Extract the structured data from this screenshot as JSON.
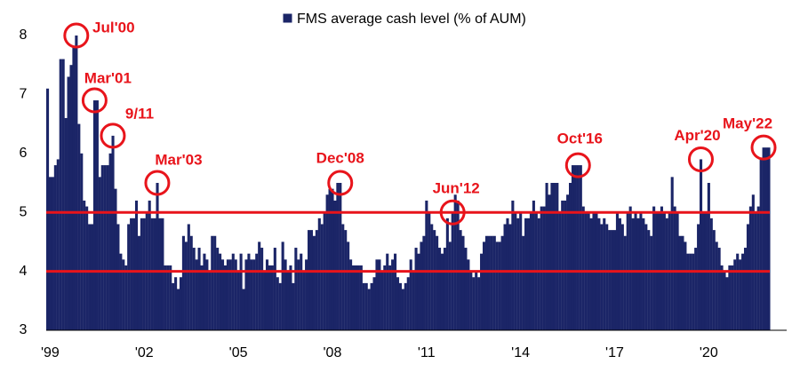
{
  "chart_data": {
    "type": "bar",
    "series": [
      {
        "name": "FMS average cash level (% of AUM)",
        "color": "#1b2567",
        "values": [
          7.1,
          5.6,
          5.6,
          5.8,
          5.9,
          7.6,
          7.6,
          6.6,
          7.3,
          7.5,
          7.8,
          8.0,
          6.5,
          6.0,
          5.2,
          5.1,
          4.8,
          4.8,
          6.9,
          6.9,
          5.6,
          5.8,
          5.8,
          5.8,
          6.0,
          6.3,
          5.4,
          4.8,
          4.3,
          4.2,
          4.1,
          4.8,
          4.9,
          4.9,
          5.2,
          4.6,
          4.9,
          4.9,
          5.0,
          5.2,
          4.9,
          4.9,
          5.5,
          4.9,
          4.9,
          4.1,
          4.1,
          4.1,
          3.8,
          3.9,
          3.7,
          3.9,
          4.6,
          4.5,
          4.8,
          4.6,
          4.4,
          4.2,
          4.4,
          4.1,
          4.3,
          4.2,
          4.0,
          4.6,
          4.6,
          4.4,
          4.3,
          4.2,
          4.1,
          4.2,
          4.2,
          4.3,
          4.2,
          4.0,
          4.3,
          3.7,
          4.2,
          4.3,
          4.2,
          4.2,
          4.3,
          4.5,
          4.4,
          4.0,
          4.2,
          4.1,
          4.1,
          4.4,
          3.9,
          3.8,
          4.5,
          4.2,
          4.0,
          4.1,
          3.8,
          4.4,
          4.2,
          4.3,
          4.0,
          4.2,
          4.7,
          4.7,
          4.6,
          4.7,
          4.9,
          4.8,
          5.0,
          5.3,
          5.4,
          5.4,
          5.2,
          5.5,
          5.5,
          4.8,
          4.7,
          4.5,
          4.2,
          4.1,
          4.1,
          4.1,
          4.1,
          3.8,
          3.8,
          3.7,
          3.8,
          3.9,
          4.2,
          4.2,
          4.0,
          4.1,
          4.3,
          4.1,
          4.2,
          4.3,
          3.9,
          3.8,
          3.7,
          3.8,
          3.9,
          4.2,
          4.0,
          4.4,
          4.3,
          4.5,
          4.6,
          5.2,
          5.0,
          4.8,
          4.7,
          4.6,
          4.4,
          4.3,
          4.4,
          4.9,
          4.5,
          5.0,
          5.3,
          5.2,
          4.7,
          4.6,
          4.4,
          4.2,
          4.0,
          3.9,
          4.0,
          3.9,
          4.3,
          4.5,
          4.6,
          4.6,
          4.6,
          4.6,
          4.5,
          4.5,
          4.6,
          4.8,
          4.9,
          4.8,
          5.2,
          5.0,
          4.9,
          5.0,
          4.6,
          4.9,
          4.9,
          5.0,
          5.2,
          5.0,
          4.9,
          5.1,
          5.1,
          5.5,
          5.3,
          5.5,
          5.5,
          5.5,
          5.0,
          5.2,
          5.2,
          5.3,
          5.5,
          5.8,
          5.8,
          5.8,
          5.8,
          5.1,
          5.0,
          5.0,
          4.9,
          5.0,
          5.0,
          4.9,
          4.8,
          4.9,
          4.8,
          4.7,
          4.7,
          4.7,
          5.0,
          4.9,
          4.8,
          4.6,
          5.0,
          5.1,
          4.9,
          5.0,
          4.9,
          5.0,
          4.9,
          4.8,
          4.7,
          4.6,
          5.1,
          5.0,
          5.0,
          5.1,
          5.0,
          4.9,
          5.0,
          5.6,
          5.1,
          5.0,
          4.6,
          4.6,
          4.5,
          4.3,
          4.3,
          4.3,
          4.4,
          4.8,
          5.9,
          5.0,
          5.0,
          5.5,
          4.9,
          4.7,
          4.5,
          4.4,
          4.1,
          4.0,
          3.9,
          4.1,
          4.1,
          4.2,
          4.3,
          4.2,
          4.3,
          4.4,
          4.8,
          5.1,
          5.3,
          5.0,
          5.1,
          5.9,
          6.1,
          6.1,
          6.1
        ]
      }
    ],
    "categories": [
      null,
      "'99",
      null,
      null,
      null,
      null,
      null,
      null,
      null,
      null,
      null,
      null,
      null,
      null,
      null,
      null,
      null,
      null,
      null,
      null,
      null,
      null,
      null,
      null,
      null,
      null,
      null,
      null,
      null,
      null,
      null,
      null,
      null,
      null,
      null,
      null,
      null,
      "'02",
      null,
      null,
      null,
      null,
      null,
      null,
      null,
      null,
      null,
      null,
      null,
      null,
      null,
      null,
      null,
      null,
      null,
      null,
      null,
      null,
      null,
      null,
      null,
      null,
      null,
      null,
      null,
      null,
      null,
      null,
      null,
      null,
      null,
      null,
      null,
      "'05",
      null,
      null,
      null,
      null,
      null,
      null,
      null,
      null,
      null,
      null,
      null,
      null,
      null,
      null,
      null,
      null,
      null,
      null,
      null,
      null,
      null,
      null,
      null,
      null,
      null,
      null,
      null,
      null,
      null,
      null,
      null,
      null,
      null,
      null,
      null,
      "'08",
      null,
      null,
      null,
      null,
      null,
      null,
      null,
      null,
      null,
      null,
      null,
      null,
      null,
      null,
      null,
      null,
      null,
      null,
      null,
      null,
      null,
      null,
      null,
      null,
      null,
      null,
      null,
      null,
      null,
      null,
      null,
      null,
      null,
      null,
      null,
      "'11",
      null,
      null,
      null,
      null,
      null,
      null,
      null,
      null,
      null,
      null,
      null,
      null,
      null,
      null,
      null,
      null,
      null,
      null,
      null,
      null,
      null,
      null,
      null,
      null,
      null,
      null,
      null,
      null,
      null,
      null,
      null,
      null,
      null,
      null,
      null,
      "'14",
      null,
      null,
      null,
      null,
      null,
      null,
      null,
      null,
      null,
      null,
      null,
      null,
      null,
      null,
      null,
      null,
      null,
      null,
      null,
      null,
      null,
      null,
      null,
      null,
      null,
      null,
      null,
      null,
      null,
      null,
      null,
      null,
      null,
      null,
      null,
      "'17",
      null,
      null,
      null,
      null,
      null,
      null,
      null,
      null,
      null,
      null,
      null,
      null,
      null,
      null,
      null,
      null,
      null,
      null,
      null,
      null,
      null,
      null,
      null,
      null,
      null,
      null,
      null,
      null,
      null,
      null,
      null,
      null,
      null,
      null,
      null,
      "'20",
      null,
      null,
      null,
      null,
      null,
      null,
      null,
      null,
      null,
      null,
      null,
      null,
      null,
      null,
      null,
      null,
      null,
      null,
      null,
      null,
      null,
      null,
      null
    ],
    "ylim": [
      3,
      8
    ],
    "yticks": [
      3,
      4,
      5,
      6,
      7,
      8
    ],
    "reference_lines": [
      5,
      4
    ],
    "reference_color": "#e8141b",
    "annotations": [
      "Jul'00",
      "Mar'01",
      "9/11",
      "Mar'03",
      "Dec'08",
      "Jun'12",
      "Oct'16",
      "Apr'20",
      "May'22"
    ],
    "legend": "top"
  }
}
